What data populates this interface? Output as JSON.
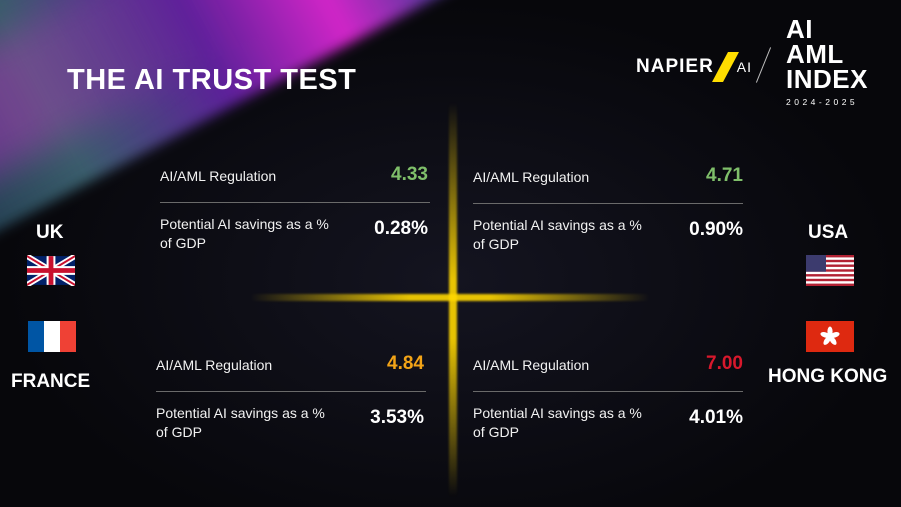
{
  "title": "THE AI TRUST TEST",
  "logos": {
    "napier_left": "NAPIER",
    "napier_right": "AI",
    "index_line1": "AI",
    "index_line2": "AML",
    "index_line3": "INDEX",
    "index_years": "2024-2025"
  },
  "colors": {
    "accent_yellow": "#ffdd00",
    "green": "#7fbf6a",
    "orange": "#f3a417",
    "red": "#d8182c"
  },
  "countries": {
    "uk": "UK",
    "france": "FRANCE",
    "usa": "USA",
    "hong_kong": "HONG KONG"
  },
  "panels": [
    {
      "regulation_label": "AI/AML Regulation",
      "regulation_value": "4.33",
      "savings_label": "Potential AI savings as a % of GDP",
      "savings_value": "0.28%"
    },
    {
      "regulation_label": "AI/AML Regulation",
      "regulation_value": "4.71",
      "savings_label": "Potential AI savings as a % of GDP",
      "savings_value": "0.90%"
    },
    {
      "regulation_label": "AI/AML Regulation",
      "regulation_value": "4.84",
      "savings_label": "Potential AI savings as a % of GDP",
      "savings_value": "3.53%"
    },
    {
      "regulation_label": "AI/AML Regulation",
      "regulation_value": "7.00",
      "savings_label": "Potential AI savings as a % of GDP",
      "savings_value": "4.01%"
    }
  ]
}
